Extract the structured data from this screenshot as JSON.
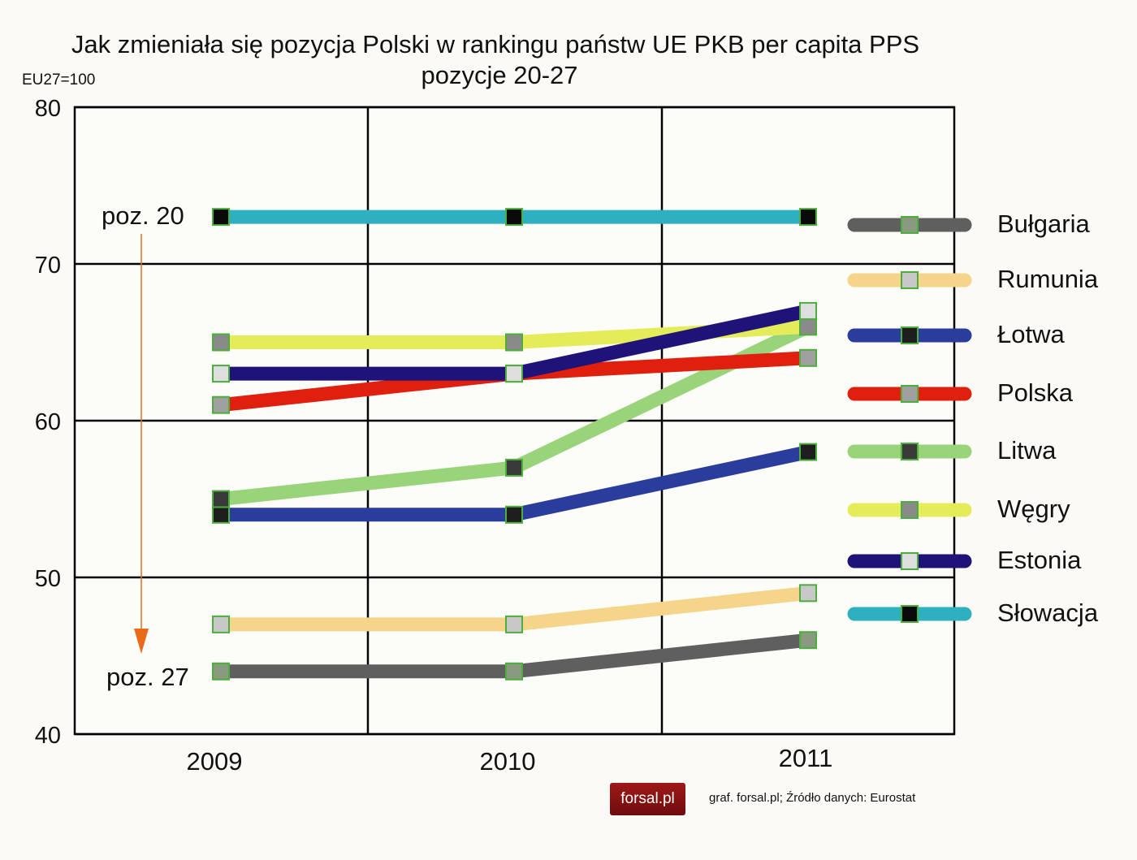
{
  "chart_data": {
    "type": "line",
    "title": "Jak zmieniała się pozycja Polski w rankingu państw UE PKB per capita PPS",
    "subtitle": "pozycje 20-27",
    "ylabel": "EU27=100",
    "xlabel": "",
    "categories": [
      "2009",
      "2010",
      "2011"
    ],
    "ylim": [
      40,
      80
    ],
    "yticks": [
      40,
      50,
      60,
      70,
      80
    ],
    "grid": true,
    "legend": "right",
    "annotations": [
      "poz. 20",
      "poz. 27"
    ],
    "series": [
      {
        "name": "Bułgaria",
        "values": [
          44,
          44,
          46
        ],
        "color": "#5f5f5f",
        "marker": "#8a9a80"
      },
      {
        "name": "Rumunia",
        "values": [
          47,
          47,
          49
        ],
        "color": "#f5d58a",
        "marker": "#c8c8c8"
      },
      {
        "name": "Łotwa",
        "values": [
          54,
          54,
          58
        ],
        "color": "#2a3c9c",
        "marker": "#1e1e1e"
      },
      {
        "name": "Polska",
        "values": [
          61,
          63,
          64
        ],
        "color": "#e0200f",
        "marker": "#a0a0a0"
      },
      {
        "name": "Litwa",
        "values": [
          55,
          57,
          66
        ],
        "color": "#9ad47a",
        "marker": "#3a3a3a"
      },
      {
        "name": "Węgry",
        "values": [
          65,
          65,
          66
        ],
        "color": "#e4ec5a",
        "marker": "#8a8a8a"
      },
      {
        "name": "Estonia",
        "values": [
          63,
          63,
          67
        ],
        "color": "#1f137a",
        "marker": "#dedede"
      },
      {
        "name": "Słowacja",
        "values": [
          73,
          73,
          73
        ],
        "color": "#2fb0c0",
        "marker": "#0a0a0a"
      }
    ]
  },
  "footer": {
    "logo": "forsal.pl",
    "source": "graf. forsal.pl; Źródło danych: Eurostat"
  }
}
